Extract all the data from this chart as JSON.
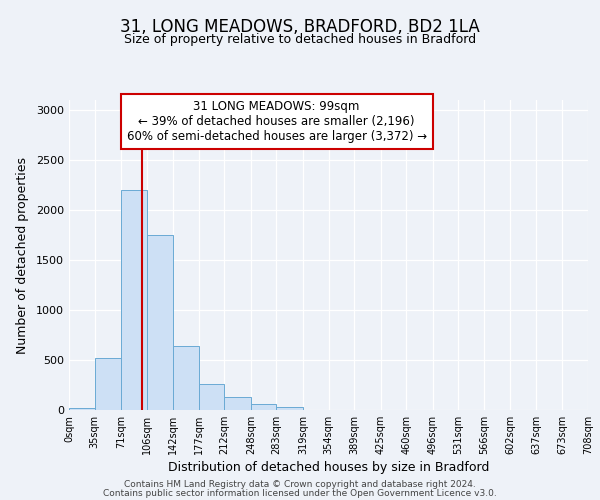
{
  "title": "31, LONG MEADOWS, BRADFORD, BD2 1LA",
  "subtitle": "Size of property relative to detached houses in Bradford",
  "xlabel": "Distribution of detached houses by size in Bradford",
  "ylabel": "Number of detached properties",
  "bar_color": "#cde0f5",
  "bar_edge_color": "#6aaad4",
  "bin_edges": [
    0,
    35,
    71,
    106,
    142,
    177,
    212,
    248,
    283,
    319,
    354,
    389,
    425,
    460,
    496,
    531,
    566,
    602,
    637,
    673,
    708
  ],
  "bar_heights": [
    25,
    520,
    2200,
    1750,
    640,
    260,
    130,
    65,
    30,
    5,
    5,
    2,
    1,
    0,
    0,
    0,
    0,
    0,
    0,
    0
  ],
  "tick_labels": [
    "0sqm",
    "35sqm",
    "71sqm",
    "106sqm",
    "142sqm",
    "177sqm",
    "212sqm",
    "248sqm",
    "283sqm",
    "319sqm",
    "354sqm",
    "389sqm",
    "425sqm",
    "460sqm",
    "496sqm",
    "531sqm",
    "566sqm",
    "602sqm",
    "637sqm",
    "673sqm",
    "708sqm"
  ],
  "ylim": [
    0,
    3100
  ],
  "yticks": [
    0,
    500,
    1000,
    1500,
    2000,
    2500,
    3000
  ],
  "property_line_x": 99,
  "annotation_title": "31 LONG MEADOWS: 99sqm",
  "annotation_line1": "← 39% of detached houses are smaller (2,196)",
  "annotation_line2": "60% of semi-detached houses are larger (3,372) →",
  "annotation_box_color": "#ffffff",
  "annotation_box_edge": "#cc0000",
  "vline_color": "#cc0000",
  "background_color": "#eef2f8",
  "grid_color": "#ffffff",
  "footer1": "Contains HM Land Registry data © Crown copyright and database right 2024.",
  "footer2": "Contains public sector information licensed under the Open Government Licence v3.0.",
  "title_fontsize": 12,
  "subtitle_fontsize": 9,
  "xlabel_fontsize": 9,
  "ylabel_fontsize": 9,
  "tick_fontsize": 7,
  "footer_fontsize": 6.5,
  "annotation_fontsize": 8.5
}
